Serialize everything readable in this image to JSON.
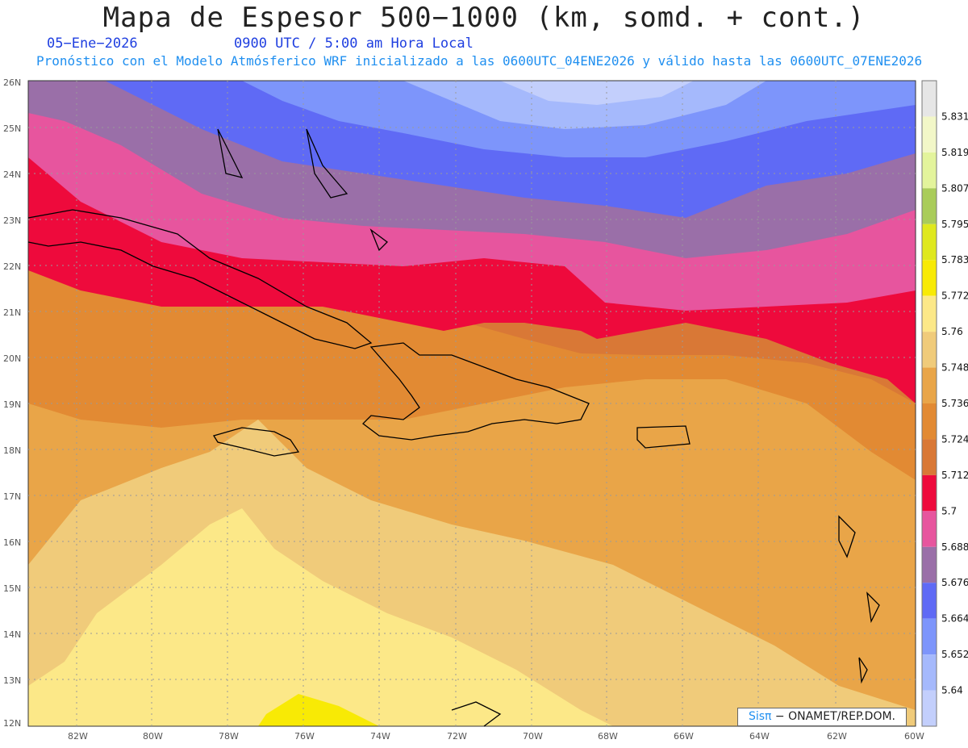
{
  "header": {
    "title": "Mapa de Espesor 500−1000 (km, somd. + cont.)",
    "date": "05−Ene−2026",
    "time": "0900 UTC / 5:00 am Hora Local",
    "subtitle": "Pronóstico con el Modelo Atmósferico WRF inicializado a las 0600UTC_04ENE2026 y válido hasta las  0600UTC_07ENE2026"
  },
  "axes": {
    "lat_labels": [
      "26N",
      "25N",
      "24N",
      "23N",
      "22N",
      "21N",
      "20N",
      "19N",
      "18N",
      "17N",
      "16N",
      "15N",
      "14N",
      "13N",
      "12N"
    ],
    "lon_labels": [
      "82W",
      "80W",
      "78W",
      "76W",
      "74W",
      "72W",
      "70W",
      "68W",
      "66W",
      "64W",
      "62W",
      "60W"
    ]
  },
  "colorbar": {
    "levels": [
      "5.831",
      "5.819",
      "5.807",
      "5.795",
      "5.783",
      "5.772",
      "5.76",
      "5.748",
      "5.736",
      "5.724",
      "5.712",
      "5.7",
      "5.688",
      "5.676",
      "5.664",
      "5.652",
      "5.64"
    ],
    "colors": [
      "#e6e6e6",
      "#f2f7c8",
      "#e3f49c",
      "#a9cc5a",
      "#dfe81e",
      "#f8ea05",
      "#fce888",
      "#f0cb7a",
      "#e9a548",
      "#e28a33",
      "#d97836",
      "#ee0a3c",
      "#e7559e",
      "#9a6fa8",
      "#5f6af5",
      "#7d95fb",
      "#a5b9fc",
      "#c3cffc"
    ]
  },
  "credit": {
    "brand": "Sisπ",
    "text": " − ONAMET/REP.DOM."
  }
}
